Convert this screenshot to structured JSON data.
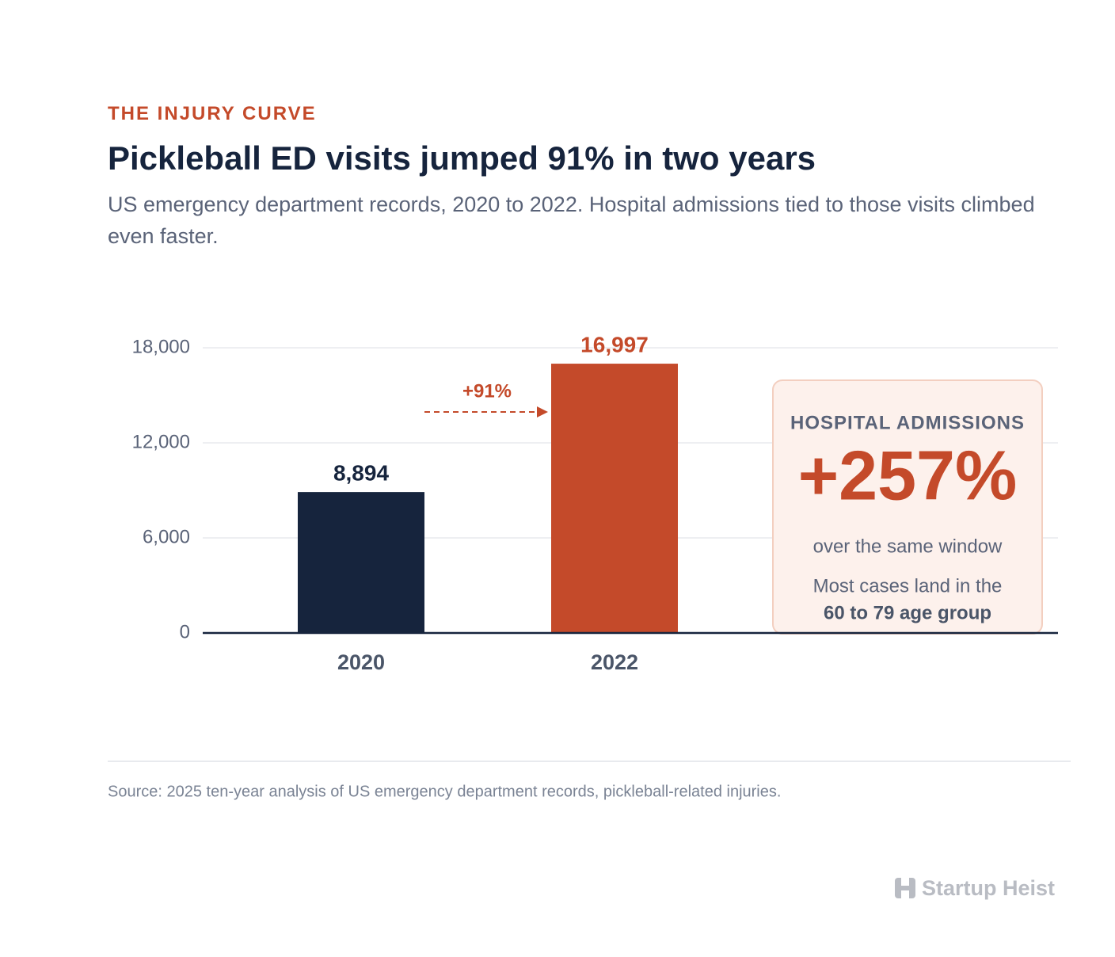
{
  "chart_data": {
    "type": "bar",
    "eyebrow": "THE INJURY CURVE",
    "title": "Pickleball ED visits jumped 91% in two years",
    "subtitle": "US emergency department records, 2020 to 2022. Hospital admissions tied to those visits climbed even faster.",
    "categories": [
      "2020",
      "2022"
    ],
    "values": [
      8894,
      16997
    ],
    "value_labels": [
      "8,894",
      "16,997"
    ],
    "colors": [
      "#16243d",
      "#c44a2a"
    ],
    "ylim": [
      0,
      18000
    ],
    "yticks": [
      0,
      {
        "value": 6000,
        "label": "6,000"
      },
      {
        "value": 12000,
        "label": "12,000"
      },
      {
        "value": 18000,
        "label": "18,000"
      }
    ],
    "grid": true,
    "annotation": "+91%",
    "callout": {
      "heading": "HOSPITAL ADMISSIONS",
      "value": "+257%",
      "caption": "over the same window",
      "note": "Most cases land in the",
      "note_emphasis": "60 to 79 age group"
    },
    "source": "Source: 2025 ten-year analysis of US emergency department records, pickleball-related injuries.",
    "brand": "Startup Heist"
  }
}
